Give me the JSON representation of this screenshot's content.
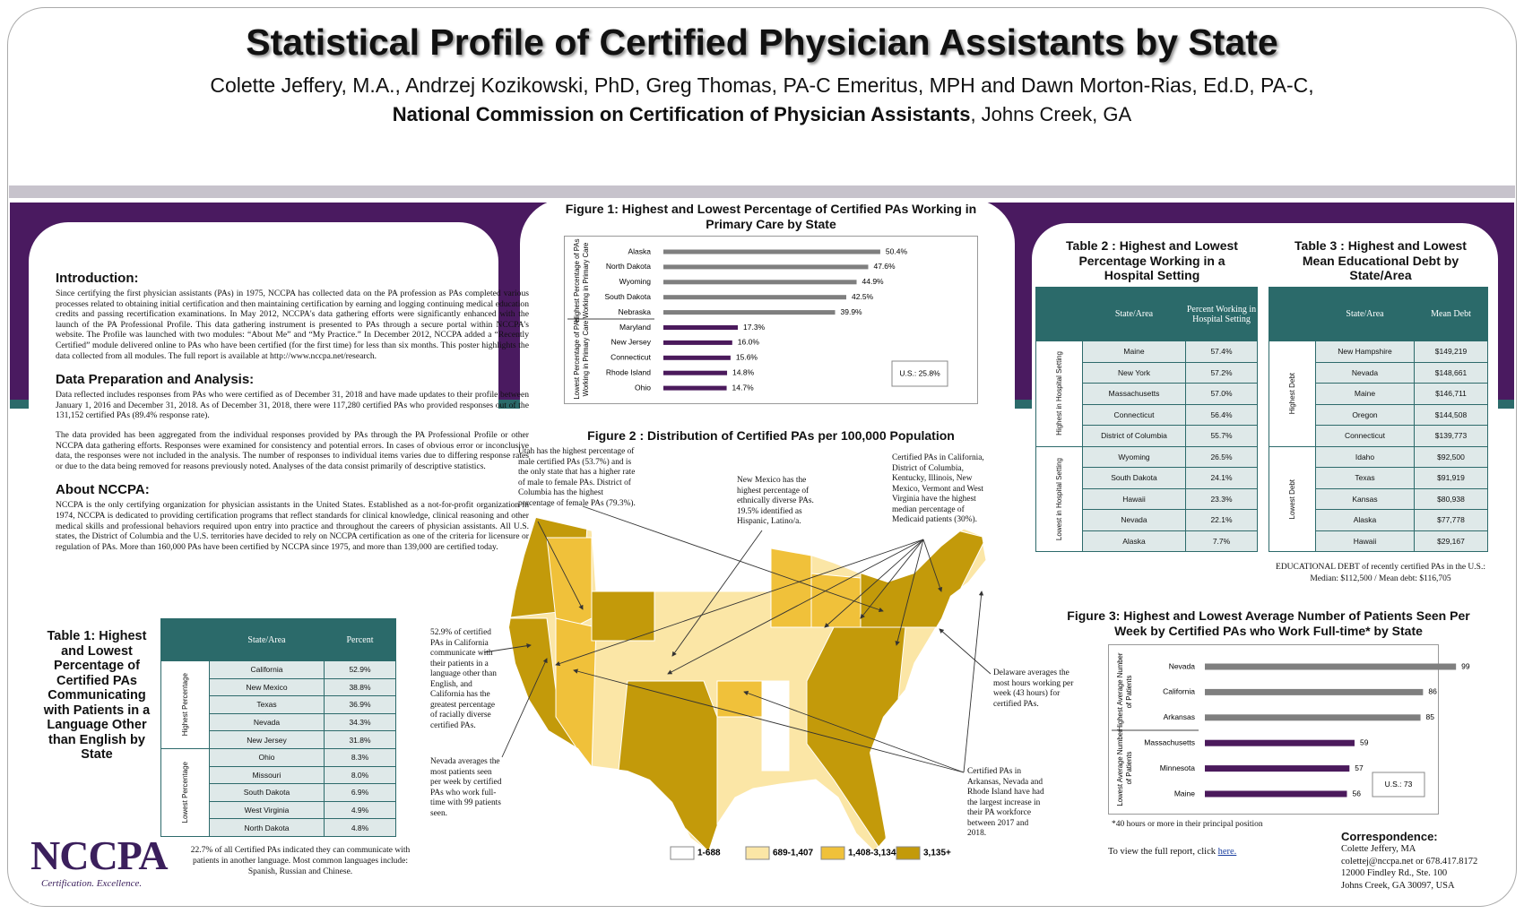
{
  "header": {
    "title": "Statistical Profile of Certified Physician Assistants by State",
    "authors": "Colette Jeffery, M.A., Andrzej Kozikowski, PhD, Greg Thomas, PA-C Emeritus, MPH and Dawn Morton-Rias, Ed.D, PA-C,",
    "organization": "National Commission on Certification of Physician Assistants",
    "location": ", Johns Creek, GA"
  },
  "introduction": {
    "heading": "Introduction:",
    "text": "Since certifying the first physician assistants (PAs) in 1975, NCCPA has collected data on the PA profession as PAs completed various processes related to obtaining initial certification and then maintaining certification by earning and logging continuing medical education credits and passing recertification examinations. In May 2012, NCCPA's data gathering efforts were significantly enhanced with the launch of the PA Professional Profile. This data gathering instrument is presented to PAs through a secure portal within NCCPA's website. The Profile was launched with two modules: “About Me” and “My Practice.” In December 2012, NCCPA added a “Recently Certified” module delivered online to PAs who have been certified (for the first time) for less than six months. This poster highlights the data collected from all modules. The full report is available at http://www.nccpa.net/research."
  },
  "data_preparation": {
    "heading": "Data Preparation and Analysis:",
    "paragraphs": [
      "Data reflected includes responses from PAs who were certified as of December 31, 2018 and have made updates to their profile between January 1, 2016 and December 31, 2018. As of December 31, 2018, there were 117,280 certified PAs who provided responses out of the 131,152 certified PAs (89.4% response rate).",
      "The data provided has been aggregated from the individual responses provided by PAs through the PA Professional Profile or other NCCPA data gathering efforts. Responses were examined for consistency and potential errors. In cases of obvious error or inconclusive data, the responses were not included in the analysis. The number of responses to individual items varies due to differing response rates or due to the data being removed for reasons previously noted. Analyses of the data consist primarily of descriptive statistics."
    ]
  },
  "about": {
    "heading": "About NCCPA:",
    "text": "NCCPA is the only certifying organization for physician assistants in the United States. Established as a not-for-profit organization in 1974, NCCPA is dedicated to providing certification programs that reflect standards for clinical knowledge, clinical reasoning and other medical skills and professional behaviors required upon entry into practice and throughout the careers of physician assistants. All U.S. states, the District of Columbia and the U.S. territories have decided to rely on NCCPA certification as one of the criteria for licensure or regulation of PAs. More than 160,000 PAs have been certified by NCCPA since 1975, and more than 139,000 are certified today."
  },
  "table1": {
    "title": "Table 1: Highest and Lowest Percentage of Certified PAs Communicating with Patients in a Language Other than English by State",
    "columns": [
      "State/Area",
      "Percent"
    ],
    "groups": [
      {
        "label": "Highest Percentage",
        "rows": [
          [
            "California",
            "52.9%"
          ],
          [
            "New Mexico",
            "38.8%"
          ],
          [
            "Texas",
            "36.9%"
          ],
          [
            "Nevada",
            "34.3%"
          ],
          [
            "New Jersey",
            "31.8%"
          ]
        ]
      },
      {
        "label": "Lowest Percentage",
        "rows": [
          [
            "Ohio",
            "8.3%"
          ],
          [
            "Missouri",
            "8.0%"
          ],
          [
            "South Dakota",
            "6.9%"
          ],
          [
            "West Virginia",
            "4.9%"
          ],
          [
            "North Dakota",
            "4.8%"
          ]
        ]
      }
    ],
    "note": "22.7% of all Certified PAs indicated they can communicate with patients in another language. Most common languages include: Spanish, Russian and Chinese."
  },
  "logo": {
    "name": "NCCPA",
    "tagline": "Certification. Excellence."
  },
  "figure1": {
    "title": "Figure 1: Highest and Lowest Percentage of Certified PAs Working in Primary Care by State",
    "axis_groups": [
      [
        "Highest Percentage of PAs",
        "Working in Primary Care"
      ],
      [
        "Lowest Percentage of PAs",
        "Working in Primary Care"
      ]
    ],
    "categories": [
      "Alaska",
      "North Dakota",
      "Wyoming",
      "South Dakota",
      "Nebraska",
      "Maryland",
      "New Jersey",
      "Connecticut",
      "Rhode Island",
      "Ohio"
    ],
    "values": [
      50.4,
      47.6,
      44.9,
      42.5,
      39.9,
      17.3,
      16.0,
      15.6,
      14.8,
      14.7
    ],
    "value_labels": [
      "50.4%",
      "47.6%",
      "44.9%",
      "42.5%",
      "39.9%",
      "17.3%",
      "16.0%",
      "15.6%",
      "14.8%",
      "14.7%"
    ],
    "colors": [
      "#7f7f7f",
      "#7f7f7f",
      "#7f7f7f",
      "#7f7f7f",
      "#7f7f7f",
      "#4b1a5c",
      "#4b1a5c",
      "#4b1a5c",
      "#4b1a5c",
      "#4b1a5c"
    ],
    "note": "U.S.: 25.8%"
  },
  "figure2": {
    "title": "Figure 2 : Distribution of Certified PAs per 100,000 Population",
    "annotations": [
      "Utah has the highest percentage of male certified PAs (53.7%) and is the only state that has a higher rate of male to female PAs. District of Columbia has the highest percentage of female PAs (79.3%).",
      "New Mexico has the highest percentage of ethnically diverse PAs. 19.5% identified as Hispanic, Latino/a.",
      "Certified PAs in California, District of Columbia, Kentucky, Illinois, New Mexico, Vermont and West Virginia have the highest median percentage of Medicaid patients (30%).",
      "52.9% of certified PAs in California communicate with their patients in a language other than English, and California has the greatest percentage of racially diverse certified PAs.",
      "Nevada averages the most patients seen per week by certified PAs who work full-time with 99 patients seen.",
      "Delaware averages the most hours working per week (43 hours) for certified PAs.",
      "Certified PAs in Arkansas, Nevada and Rhode Island have had the largest increase in their PA workforce between 2017 and 2018."
    ],
    "legend": [
      {
        "label": "1-688",
        "color": "#ffffff"
      },
      {
        "label": "689-1,407",
        "color": "#fbe6a6"
      },
      {
        "label": "1,408-3,134",
        "color": "#f0c13a"
      },
      {
        "label": "3,135+",
        "color": "#c39a0a"
      }
    ]
  },
  "table2": {
    "title": "Table 2 : Highest and Lowest Percentage Working in a Hospital Setting",
    "columns": [
      "State/Area",
      "Percent Working in Hospital Setting"
    ],
    "groups": [
      {
        "label": "Highest in Hospital Setting",
        "rows": [
          [
            "Maine",
            "57.4%"
          ],
          [
            "New York",
            "57.2%"
          ],
          [
            "Massachusetts",
            "57.0%"
          ],
          [
            "Connecticut",
            "56.4%"
          ],
          [
            "District of Columbia",
            "55.7%"
          ]
        ]
      },
      {
        "label": "Lowest in Hospital Setting",
        "rows": [
          [
            "Wyoming",
            "26.5%"
          ],
          [
            "South Dakota",
            "24.1%"
          ],
          [
            "Hawaii",
            "23.3%"
          ],
          [
            "Nevada",
            "22.1%"
          ],
          [
            "Alaska",
            "7.7%"
          ]
        ]
      }
    ]
  },
  "table3": {
    "title": "Table 3 : Highest and Lowest Mean Educational Debt by State/Area",
    "columns": [
      "State/Area",
      "Mean Debt"
    ],
    "groups": [
      {
        "label": "Highest Debt",
        "rows": [
          [
            "New Hampshire",
            "$149,219"
          ],
          [
            "Nevada",
            "$148,661"
          ],
          [
            "Maine",
            "$146,711"
          ],
          [
            "Oregon",
            "$144,508"
          ],
          [
            "Connecticut",
            "$139,773"
          ]
        ]
      },
      {
        "label": "Lowest Debt",
        "rows": [
          [
            "Idaho",
            "$92,500"
          ],
          [
            "Texas",
            "$91,919"
          ],
          [
            "Kansas",
            "$80,938"
          ],
          [
            "Alaska",
            "$77,778"
          ],
          [
            "Hawaii",
            "$29,167"
          ]
        ]
      }
    ],
    "note": "EDUCATIONAL DEBT of recently certified PAs in the U.S.: Median: $112,500 / Mean debt: $116,705"
  },
  "figure3": {
    "title": "Figure 3: Highest and Lowest Average Number of Patients Seen Per Week by Certified PAs who Work Full-time* by State",
    "axis_groups": [
      [
        "Highest Average Number",
        "of Patients"
      ],
      [
        "Lowest Average Number",
        "of Patients"
      ]
    ],
    "categories": [
      "Nevada",
      "California",
      "Arkansas",
      "Massachusetts",
      "Minnesota",
      "Maine"
    ],
    "values": [
      99,
      86,
      85,
      59,
      57,
      56
    ],
    "colors": [
      "#7f7f7f",
      "#7f7f7f",
      "#7f7f7f",
      "#4b1a5c",
      "#4b1a5c",
      "#4b1a5c"
    ],
    "note": "U.S.: 73",
    "footnote": "*40 hours or more in their principal position"
  },
  "report": {
    "text": "To view the full report, click",
    "link": "here."
  },
  "correspondence": {
    "heading": "Correspondence:",
    "lines": [
      "Colette Jeffery, MA",
      "colettej@nccpa.net or 678.417.8172",
      "12000 Findley Rd., Ste. 100",
      "Johns Creek, GA 30097, USA"
    ]
  }
}
